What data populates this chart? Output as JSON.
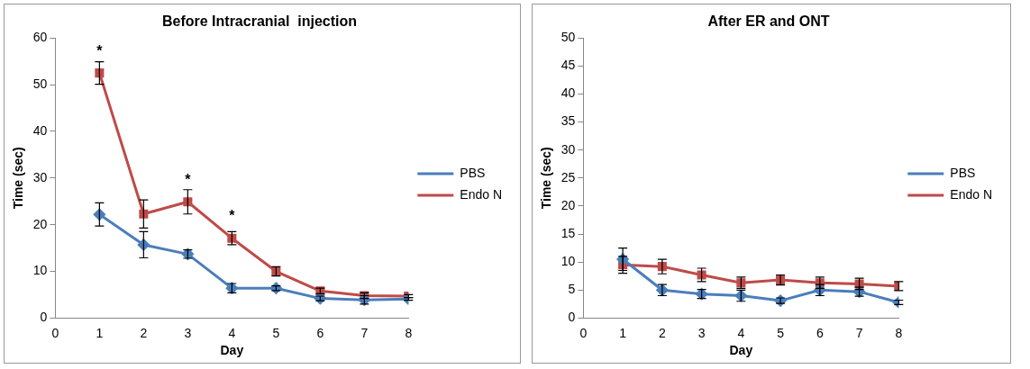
{
  "chart_data": [
    {
      "type": "line",
      "title": "Before Intracranial  injection",
      "xlabel": "Day",
      "ylabel": "Time (sec)",
      "x": [
        1,
        2,
        3,
        4,
        5,
        6,
        7,
        8
      ],
      "xlim": [
        0,
        8
      ],
      "xticks": [
        0,
        1,
        2,
        3,
        4,
        5,
        6,
        7,
        8
      ],
      "ylim": [
        0,
        60
      ],
      "yticks": [
        0,
        10,
        20,
        30,
        40,
        50,
        60
      ],
      "grid": false,
      "legend": "right",
      "series": [
        {
          "name": "PBS",
          "color": "#4a7ebb",
          "marker": "diamond",
          "values": [
            22.2,
            15.7,
            13.7,
            6.4,
            6.4,
            4.2,
            3.9,
            4.1
          ],
          "errors": [
            2.5,
            2.8,
            0.9,
            1,
            0.5,
            0.5,
            0.9,
            0.3
          ]
        },
        {
          "name": "Endo N",
          "color": "#be4b48",
          "marker": "square",
          "values": [
            52.5,
            22.3,
            24.9,
            17.1,
            10,
            5.8,
            4.8,
            4.7
          ],
          "errors": [
            2.4,
            3,
            2.6,
            1.4,
            1,
            0.6,
            0.6,
            0.3
          ]
        }
      ],
      "annotations": [
        {
          "text": "*",
          "x": 1,
          "y": 52.5
        },
        {
          "text": "*",
          "x": 3,
          "y": 24.9
        },
        {
          "text": "*",
          "x": 4,
          "y": 17.1
        }
      ]
    },
    {
      "type": "line",
      "title": "After ER and ONT",
      "xlabel": "Day",
      "ylabel": "Time (sec)",
      "x": [
        1,
        2,
        3,
        4,
        5,
        6,
        7,
        8
      ],
      "xlim": [
        0,
        8
      ],
      "xticks": [
        0,
        1,
        2,
        3,
        4,
        5,
        6,
        7,
        8
      ],
      "ylim": [
        0,
        50
      ],
      "yticks": [
        0,
        5,
        10,
        15,
        20,
        25,
        30,
        35,
        40,
        45,
        50
      ],
      "grid": false,
      "legend": "right",
      "series": [
        {
          "name": "PBS",
          "color": "#4a7ebb",
          "marker": "diamond",
          "values": [
            10.5,
            5,
            4.3,
            4,
            3.1,
            5,
            4.7,
            2.8
          ],
          "errors": [
            2,
            1,
            0.8,
            1,
            0.5,
            1,
            0.8,
            0.4
          ]
        },
        {
          "name": "Endo N",
          "color": "#be4b48",
          "marker": "square",
          "values": [
            9.5,
            9.2,
            7.7,
            6.3,
            6.8,
            6.3,
            6.1,
            5.7
          ],
          "errors": [
            1.5,
            1.3,
            1.2,
            1,
            0.9,
            1,
            1,
            0.8
          ]
        }
      ]
    }
  ]
}
